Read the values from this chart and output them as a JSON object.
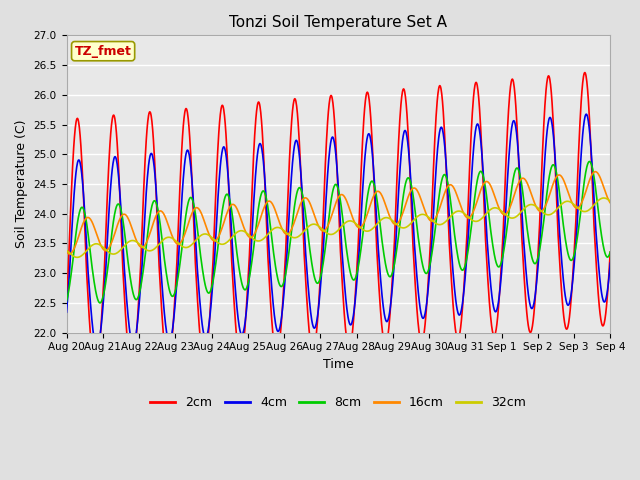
{
  "title": "Tonzi Soil Temperature Set A",
  "xlabel": "Time",
  "ylabel": "Soil Temperature (C)",
  "annotation": "TZ_fmet",
  "annotation_color": "#cc0000",
  "annotation_bg": "#ffffcc",
  "annotation_border": "#999900",
  "ylim": [
    22.0,
    27.0
  ],
  "yticks": [
    22.0,
    22.5,
    23.0,
    23.5,
    24.0,
    24.5,
    25.0,
    25.5,
    26.0,
    26.5,
    27.0
  ],
  "bg_color": "#e0e0e0",
  "plot_bg": "#e8e8e8",
  "grid_color": "#ffffff",
  "line_colors": [
    "#ff0000",
    "#0000ee",
    "#00cc00",
    "#ff8800",
    "#cccc00"
  ],
  "line_lw": 1.2,
  "legend_labels": [
    "2cm",
    "4cm",
    "8cm",
    "16cm",
    "32cm"
  ],
  "n_days": 15,
  "pts_per_day": 96,
  "amp2": 1.75,
  "amp4": 1.35,
  "amp8": 0.75,
  "amp16": 0.28,
  "amp32": 0.1,
  "phase2": 0.3,
  "phase4": 0.55,
  "phase8": 1.1,
  "phase16": 2.1,
  "phase32": 3.5,
  "base2": 23.05,
  "base4": 23.05,
  "base8": 23.2,
  "base16": 23.6,
  "base32": 23.35,
  "trend": 0.055,
  "skew": 0.45
}
